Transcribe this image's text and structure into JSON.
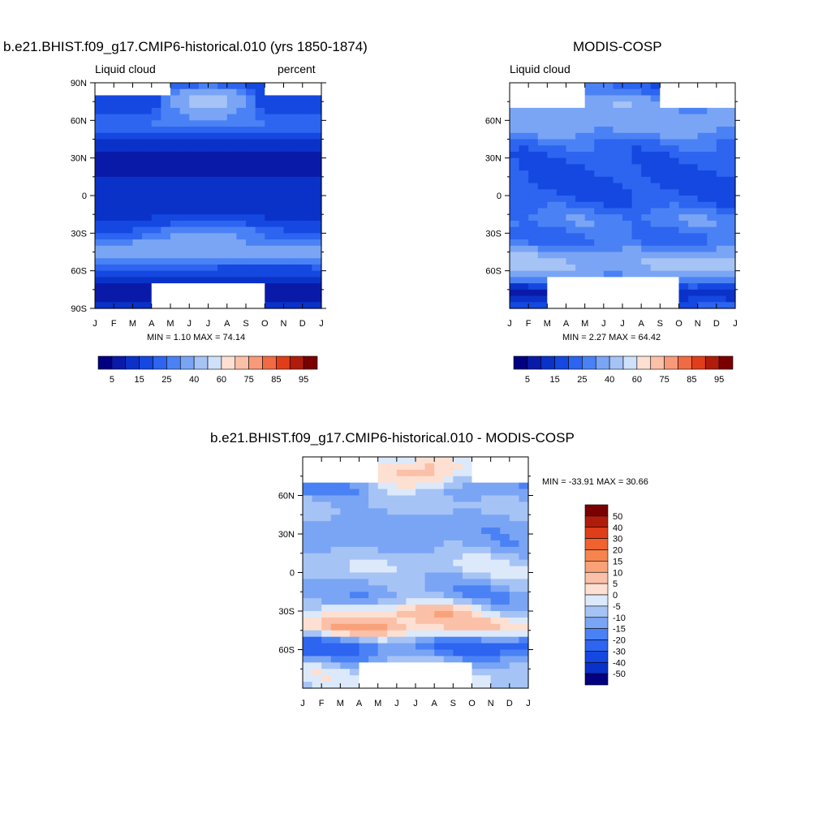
{
  "chart_data": [
    {
      "type": "heatmap",
      "id": "model",
      "title": "b.e21.BHIST.f09_g17.CMIP6-historical.010 (yrs 1850-1874)",
      "left_label": "Liquid cloud",
      "right_label": "percent",
      "x_tick_labels": [
        "J",
        "F",
        "M",
        "A",
        "M",
        "J",
        "J",
        "A",
        "S",
        "O",
        "N",
        "D",
        "J"
      ],
      "y_tick_labels": [
        "90N",
        "60N",
        "30N",
        "0",
        "30S",
        "60S",
        "90S"
      ],
      "ylim": [
        -90,
        90
      ],
      "min_max_text": "MIN =   1.10 MAX =  74.14",
      "min": 1.1,
      "max": 74.14,
      "colorbar_labels": [
        "5",
        "15",
        "25",
        "40",
        "60",
        "75",
        "85",
        "95"
      ],
      "levels": [
        5,
        10,
        15,
        20,
        25,
        30,
        40,
        50,
        60,
        65,
        75,
        80,
        85,
        90,
        95
      ],
      "missing_north_months": [
        0,
        1,
        2,
        3,
        9,
        10,
        11
      ],
      "missing_south_months": [
        3,
        4,
        5,
        6,
        7,
        8
      ]
    },
    {
      "type": "heatmap",
      "id": "obs",
      "title": "MODIS-COSP",
      "left_label": "Liquid cloud",
      "x_tick_labels": [
        "J",
        "F",
        "M",
        "A",
        "M",
        "J",
        "J",
        "A",
        "S",
        "O",
        "N",
        "D",
        "J"
      ],
      "y_tick_labels": [
        "60N",
        "30N",
        "0",
        "30S",
        "60S"
      ],
      "ylim": [
        -90,
        90
      ],
      "min_max_text": "MIN =   2.27 MAX =  64.42",
      "min": 2.27,
      "max": 64.42,
      "colorbar_labels": [
        "5",
        "15",
        "25",
        "40",
        "60",
        "75",
        "85",
        "95"
      ],
      "levels": [
        5,
        10,
        15,
        20,
        25,
        30,
        40,
        50,
        60,
        65,
        75,
        80,
        85,
        90,
        95
      ],
      "missing_north_months": [
        0,
        1,
        2,
        3,
        8,
        9,
        10,
        11
      ],
      "missing_south_months": [
        2,
        3,
        4,
        5,
        6,
        7,
        8
      ]
    },
    {
      "type": "heatmap",
      "id": "diff",
      "title": "b.e21.BHIST.f09_g17.CMIP6-historical.010 - MODIS-COSP",
      "x_tick_labels": [
        "J",
        "F",
        "M",
        "A",
        "M",
        "J",
        "J",
        "A",
        "S",
        "O",
        "N",
        "D",
        "J"
      ],
      "y_tick_labels": [
        "60N",
        "30N",
        "0",
        "30S",
        "60S"
      ],
      "ylim": [
        -90,
        90
      ],
      "min_max_text": "MIN = -33.91 MAX =  30.66",
      "min": -33.91,
      "max": 30.66,
      "colorbar_labels": [
        "50",
        "40",
        "30",
        "20",
        "15",
        "10",
        "5",
        "0",
        "-5",
        "-10",
        "-15",
        "-20",
        "-30",
        "-40",
        "-50"
      ],
      "levels": [
        -50,
        -40,
        -30,
        -20,
        -15,
        -10,
        -5,
        0,
        5,
        10,
        15,
        20,
        30,
        40,
        50
      ]
    }
  ],
  "colors": {
    "sequential": [
      "#000080",
      "#0a1aa8",
      "#0a32c8",
      "#1448e0",
      "#2d64f0",
      "#4a82f5",
      "#7aa5f5",
      "#a6c3f5",
      "#cfe0fa",
      "#fde0d2",
      "#fbc0a8",
      "#f89a7a",
      "#f06a44",
      "#e03e1a",
      "#b01c0c",
      "#7a0000"
    ],
    "diverging": [
      "#7a0000",
      "#b01c0c",
      "#e03e1a",
      "#f0622e",
      "#f6844e",
      "#f9a27a",
      "#fbc0a8",
      "#fde0d2",
      "#dce9fb",
      "#a6c3f5",
      "#7aa5f5",
      "#4a82f5",
      "#2d64f0",
      "#1448e0",
      "#0a32c8",
      "#000080"
    ],
    "missing": "#ffffff"
  }
}
